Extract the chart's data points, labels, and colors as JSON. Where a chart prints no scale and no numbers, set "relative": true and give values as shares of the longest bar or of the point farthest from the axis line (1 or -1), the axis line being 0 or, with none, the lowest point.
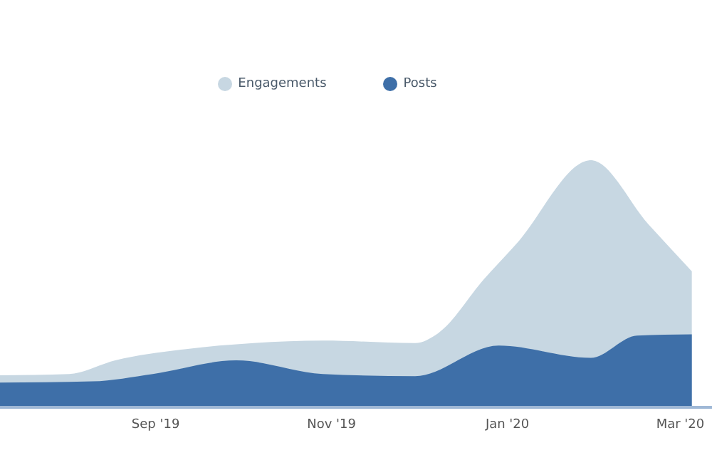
{
  "chart_data": {
    "type": "area",
    "relative": true,
    "legend": "top",
    "grid": false,
    "xlim": [
      "2019-07-09",
      "2020-03-12"
    ],
    "xticks": [
      {
        "value": "2019-09-01",
        "label": "Sep '19"
      },
      {
        "value": "2019-11-01",
        "label": "Nov '19"
      },
      {
        "value": "2020-01-01",
        "label": "Jan '20"
      },
      {
        "value": "2020-03-01",
        "label": "Mar '20"
      }
    ],
    "series": [
      {
        "name": "Engagements",
        "color": "#c7d7e2",
        "x": [
          "2019-07-09",
          "2019-08-02",
          "2019-08-18",
          "2019-09-11",
          "2019-10-05",
          "2019-10-29",
          "2019-11-30",
          "2019-12-08",
          "2019-12-24",
          "2020-01-04",
          "2020-01-30",
          "2020-02-19",
          "2020-03-05"
        ],
        "values": [
          0.13,
          0.135,
          0.19,
          0.235,
          0.26,
          0.27,
          0.26,
          0.3,
          0.52,
          0.66,
          1,
          0.74,
          0.55
        ]
      },
      {
        "name": "Posts",
        "color": "#3e6fa8",
        "x": [
          "2019-07-09",
          "2019-08-10",
          "2019-08-31",
          "2019-09-29",
          "2019-10-29",
          "2019-11-30",
          "2019-12-29",
          "2020-01-30",
          "2020-02-15",
          "2020-03-05"
        ],
        "values": [
          0.1,
          0.105,
          0.135,
          0.19,
          0.135,
          0.126,
          0.25,
          0.2,
          0.29,
          0.295
        ]
      }
    ]
  }
}
